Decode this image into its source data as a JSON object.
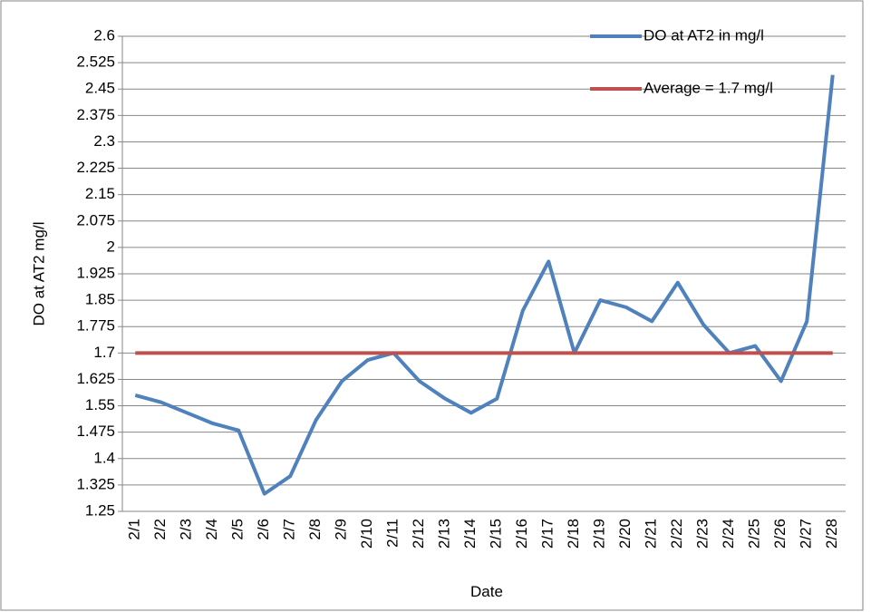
{
  "chart_data": {
    "type": "line",
    "x_label": "Date",
    "y_label": "DO at AT2 mg/l",
    "categories": [
      "2/1",
      "2/2",
      "2/3",
      "2/4",
      "2/5",
      "2/6",
      "2/7",
      "2/8",
      "2/9",
      "2/10",
      "2/11",
      "2/12",
      "2/13",
      "2/14",
      "2/15",
      "2/16",
      "2/17",
      "2/18",
      "2/19",
      "2/20",
      "2/21",
      "2/22",
      "2/23",
      "2/24",
      "2/25",
      "2/26",
      "2/27",
      "2/28"
    ],
    "series": [
      {
        "name": "DO at AT2 in mg/l",
        "color": "#4f81bd",
        "values": [
          1.58,
          1.56,
          1.53,
          1.5,
          1.48,
          1.3,
          1.35,
          1.51,
          1.62,
          1.68,
          1.7,
          1.62,
          1.57,
          1.53,
          1.57,
          1.82,
          1.96,
          1.7,
          1.85,
          1.83,
          1.79,
          1.9,
          1.78,
          1.7,
          1.72,
          1.62,
          1.79,
          2.49
        ]
      },
      {
        "name": "Average = 1.7 mg/l",
        "color": "#c0504d",
        "values": [
          1.7,
          1.7,
          1.7,
          1.7,
          1.7,
          1.7,
          1.7,
          1.7,
          1.7,
          1.7,
          1.7,
          1.7,
          1.7,
          1.7,
          1.7,
          1.7,
          1.7,
          1.7,
          1.7,
          1.7,
          1.7,
          1.7,
          1.7,
          1.7,
          1.7,
          1.7,
          1.7,
          1.7
        ]
      }
    ],
    "ylim": [
      1.25,
      2.6
    ],
    "yticks": [
      1.25,
      1.325,
      1.4,
      1.475,
      1.55,
      1.625,
      1.7,
      1.775,
      1.85,
      1.925,
      2,
      2.075,
      2.15,
      2.225,
      2.3,
      2.375,
      2.45,
      2.525,
      2.6
    ],
    "grid": true,
    "legend": "top-right"
  }
}
